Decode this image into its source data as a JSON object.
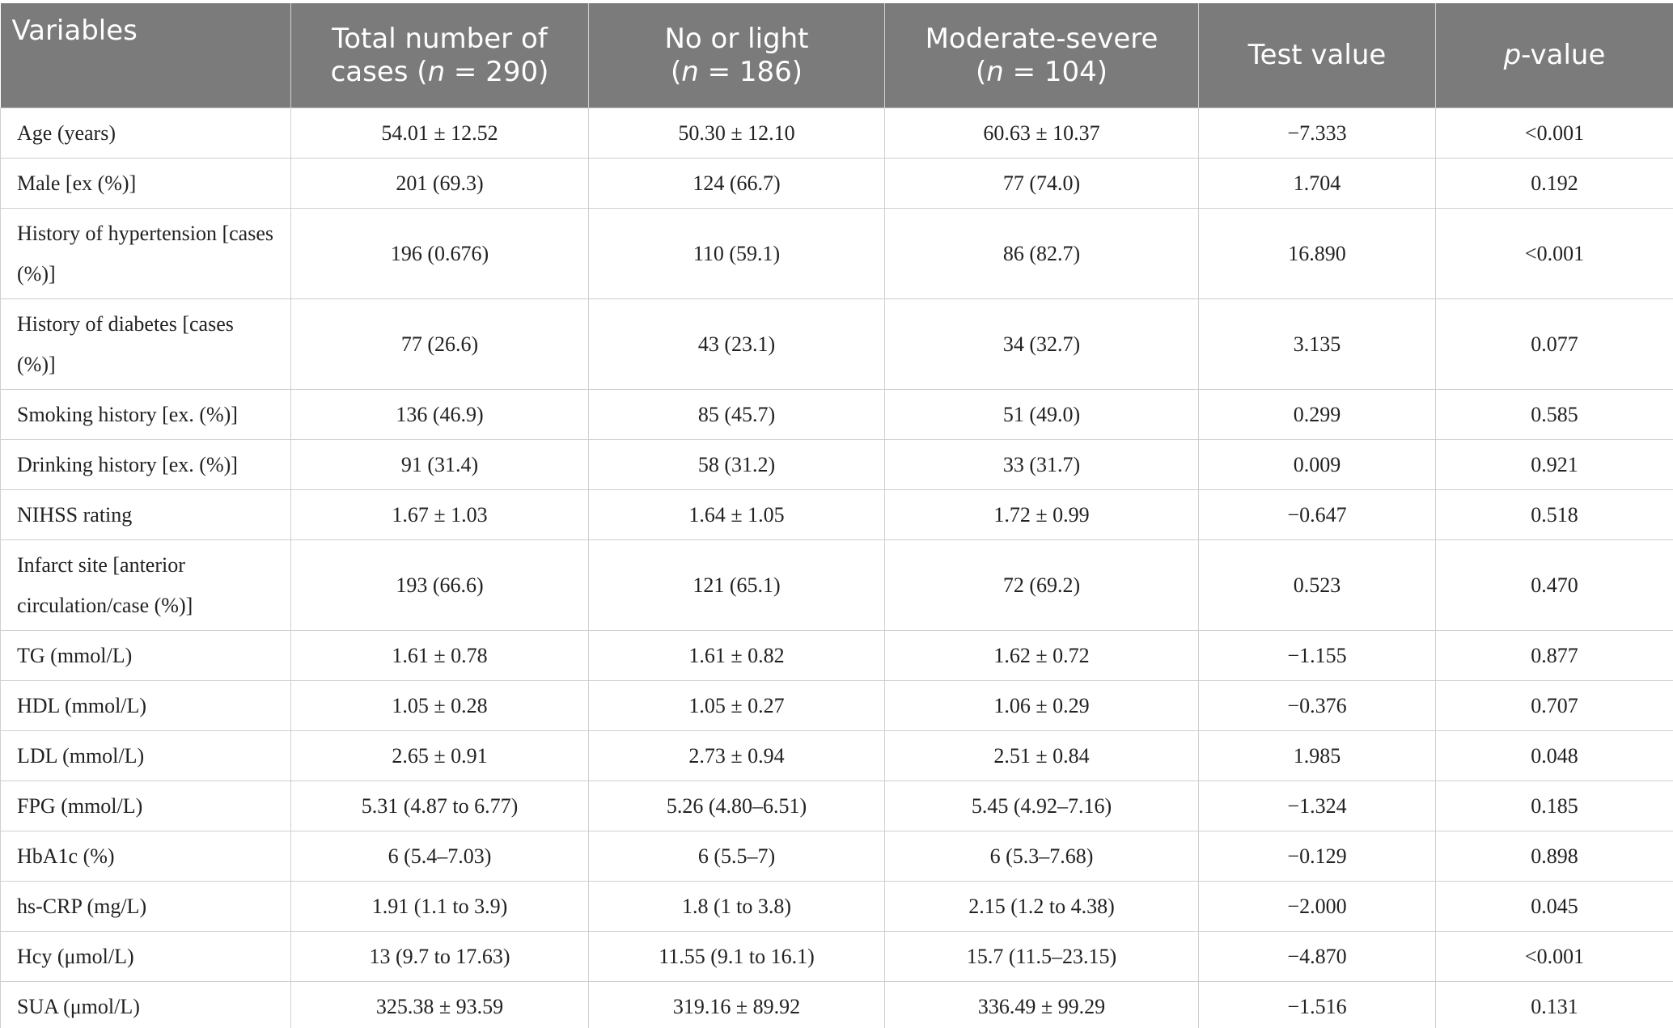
{
  "table": {
    "header": [
      [
        [
          "Variables"
        ]
      ],
      [
        [
          "Total number of"
        ],
        [
          "cases (",
          {
            "text": "n",
            "italic": true
          },
          " = 290)"
        ]
      ],
      [
        [
          "No or light"
        ],
        [
          "(",
          {
            "text": "n",
            "italic": true
          },
          " = 186)"
        ]
      ],
      [
        [
          "Moderate-severe"
        ],
        [
          "(",
          {
            "text": "n",
            "italic": true
          },
          " = 104)"
        ]
      ],
      [
        [
          "Test value"
        ]
      ],
      [
        [
          {
            "text": "p",
            "italic": true
          },
          "-value"
        ]
      ]
    ],
    "rows": [
      [
        "Age (years)",
        "54.01 ± 12.52",
        "50.30 ± 12.10",
        "60.63 ± 10.37",
        "−7.333",
        "<0.001"
      ],
      [
        "Male [ex (%)]",
        "201 (69.3)",
        "124 (66.7)",
        "77 (74.0)",
        "1.704",
        "0.192"
      ],
      [
        "History of hypertension [cases (%)]",
        "196 (0.676)",
        "110 (59.1)",
        "86 (82.7)",
        "16.890",
        "<0.001"
      ],
      [
        "History of diabetes [cases (%)]",
        "77 (26.6)",
        "43 (23.1)",
        "34 (32.7)",
        "3.135",
        "0.077"
      ],
      [
        "Smoking history [ex. (%)]",
        "136 (46.9)",
        "85 (45.7)",
        "51 (49.0)",
        "0.299",
        "0.585"
      ],
      [
        "Drinking history [ex. (%)]",
        "91 (31.4)",
        "58 (31.2)",
        "33 (31.7)",
        "0.009",
        "0.921"
      ],
      [
        "NIHSS rating",
        "1.67 ± 1.03",
        "1.64 ± 1.05",
        "1.72 ± 0.99",
        "−0.647",
        "0.518"
      ],
      [
        "Infarct site [anterior circulation/case (%)]",
        "193 (66.6)",
        "121 (65.1)",
        "72 (69.2)",
        "0.523",
        "0.470"
      ],
      [
        "TG (mmol/L)",
        "1.61 ± 0.78",
        "1.61 ± 0.82",
        "1.62 ± 0.72",
        "−1.155",
        "0.877"
      ],
      [
        "HDL (mmol/L)",
        "1.05 ± 0.28",
        "1.05 ± 0.27",
        "1.06 ± 0.29",
        "−0.376",
        "0.707"
      ],
      [
        "LDL (mmol/L)",
        "2.65 ± 0.91",
        "2.73 ± 0.94",
        "2.51 ± 0.84",
        "1.985",
        "0.048"
      ],
      [
        "FPG (mmol/L)",
        "5.31 (4.87 to 6.77)",
        "5.26 (4.80–6.51)",
        "5.45 (4.92–7.16)",
        "−1.324",
        "0.185"
      ],
      [
        "HbA1c (%)",
        "6 (5.4–7.03)",
        "6 (5.5–7)",
        "6 (5.3–7.68)",
        "−0.129",
        "0.898"
      ],
      [
        "hs-CRP (mg/L)",
        "1.91 (1.1 to 3.9)",
        "1.8 (1 to 3.8)",
        "2.15 (1.2 to 4.38)",
        "−2.000",
        "0.045"
      ],
      [
        "Hcy (μmol/L)",
        "13 (9.7 to 17.63)",
        "11.55 (9.1 to 16.1)",
        "15.7 (11.5–23.15)",
        "−4.870",
        "<0.001"
      ],
      [
        "SUA (μmol/L)",
        "325.38 ± 93.59",
        "319.16 ± 89.92",
        "336.49 ± 99.29",
        "−1.516",
        "0.131"
      ]
    ]
  }
}
